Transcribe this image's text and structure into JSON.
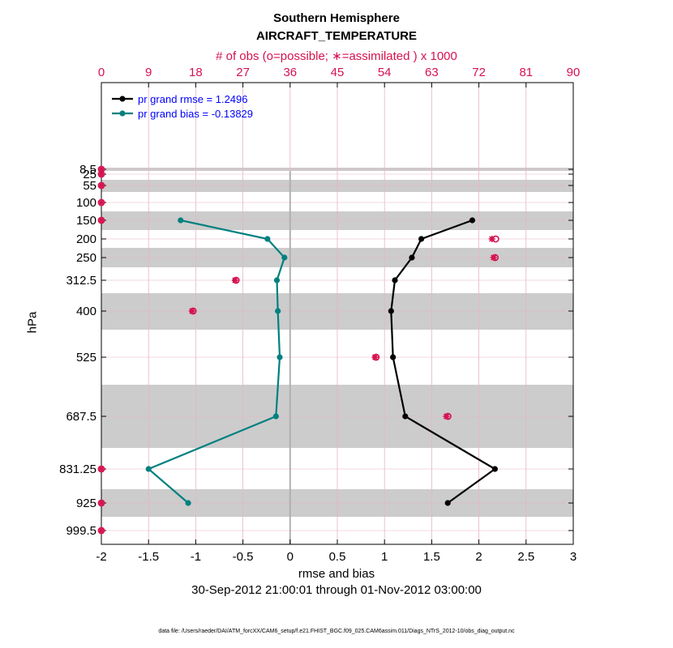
{
  "titles": {
    "title": "Southern Hemisphere",
    "subtitle": "AIRCRAFT_TEMPERATURE",
    "top_axis_label": "# of obs (o=possible; ∗=assimilated ) x 1000",
    "xlabel": "rmse and bias",
    "ylabel": "hPa",
    "date_range": "30-Sep-2012 21:00:01 through 01-Nov-2012 03:00:00",
    "data_file": "data file: /Users/raeder/DAI/ATM_forcXX/CAM6_setup/f.e21.FHIST_BGC.f09_025.CAM6assim.011/Diags_NTrS_2012-10/obs_diag_output.nc"
  },
  "colors": {
    "rmse": "#000000",
    "bias": "#008080",
    "obs": "#d6124f",
    "legend_text": "#0000ff",
    "band": "#cccccc",
    "zero_line": "#b0b0b0"
  },
  "chart_data": {
    "type": "line",
    "x_axis": {
      "label": "rmse and bias",
      "range": [
        -2,
        3
      ],
      "ticks": [
        -2,
        -1.5,
        -1,
        -0.5,
        0,
        0.5,
        1,
        1.5,
        2,
        2.5,
        3
      ],
      "tick_labels": [
        "-2",
        "-1.5",
        "-1",
        "-0.5",
        "0",
        "0.5",
        "1",
        "1.5",
        "2",
        "2.5",
        "3"
      ]
    },
    "top_axis": {
      "label": "# of obs (o=possible; ∗=assimilated ) x 1000",
      "range": [
        0,
        90
      ],
      "ticks": [
        0,
        9,
        18,
        27,
        36,
        45,
        54,
        63,
        72,
        81,
        90
      ],
      "tick_labels": [
        "0",
        "9",
        "18",
        "27",
        "36",
        "45",
        "54",
        "63",
        "72",
        "81",
        "90"
      ]
    },
    "y_axis": {
      "label": "hPa",
      "levels": [
        8.5,
        25,
        55,
        100,
        150,
        200,
        250,
        312.5,
        400,
        525,
        687.5,
        831.25,
        925,
        999.5
      ],
      "tick_labels": [
        "8.5",
        "25",
        "55",
        "100",
        "150",
        "200",
        "250",
        "312.5",
        "400",
        "525",
        "687.5",
        "831.25",
        "925",
        "999.5"
      ]
    },
    "grid": true,
    "legend": {
      "position": "top-left",
      "entries": [
        "pr grand rmse = 1.2496",
        "pr grand bias = -0.13829"
      ]
    },
    "series": [
      {
        "name": "pr grand rmse = 1.2496",
        "color": "#000000",
        "levels": [
          150,
          200,
          250,
          312.5,
          400,
          525,
          687.5,
          831.25,
          925
        ],
        "values": [
          1.93,
          1.39,
          1.29,
          1.11,
          1.07,
          1.09,
          1.22,
          2.17,
          1.67
        ]
      },
      {
        "name": "pr grand bias = -0.13829",
        "color": "#008080",
        "levels": [
          150,
          200,
          250,
          312.5,
          400,
          525,
          687.5,
          831.25,
          925
        ],
        "values": [
          -1.16,
          -0.24,
          -0.06,
          -0.14,
          -0.13,
          -0.11,
          -0.15,
          -1.5,
          -1.08
        ]
      }
    ],
    "obs_counts": {
      "levels": [
        8.5,
        25,
        55,
        100,
        150,
        200,
        250,
        312.5,
        400,
        525,
        687.5,
        831.25,
        925,
        999.5
      ],
      "possible": [
        0,
        0,
        0,
        0,
        0,
        75.2,
        75.1,
        25.7,
        17.5,
        52.4,
        66.1,
        0,
        0,
        0
      ],
      "assimilated": [
        0,
        0,
        0,
        0,
        0,
        74.5,
        74.8,
        25.5,
        17.3,
        52.2,
        65.8,
        0,
        0,
        0
      ]
    }
  }
}
